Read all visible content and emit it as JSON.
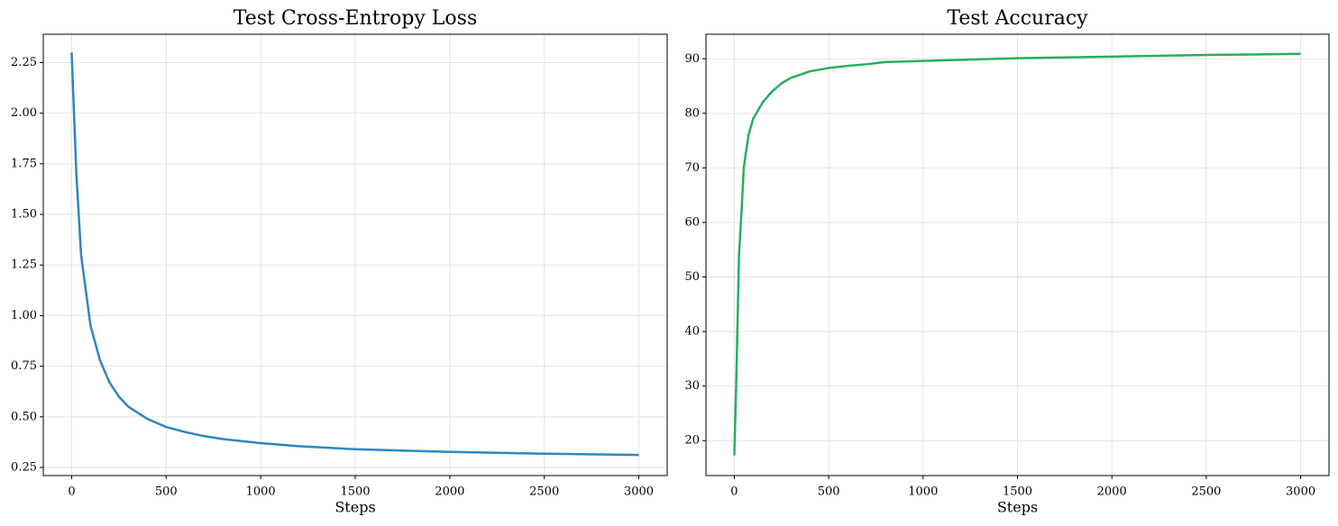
{
  "chart_data": [
    {
      "type": "line",
      "title": "Test Cross-Entropy Loss",
      "x_label": "Steps",
      "x": [
        0,
        25,
        50,
        100,
        150,
        200,
        250,
        300,
        400,
        500,
        600,
        700,
        800,
        1000,
        1200,
        1500,
        2000,
        2500,
        3000
      ],
      "values": [
        2.3,
        1.7,
        1.3,
        0.95,
        0.78,
        0.67,
        0.6,
        0.55,
        0.49,
        0.45,
        0.425,
        0.405,
        0.39,
        0.37,
        0.355,
        0.34,
        0.327,
        0.318,
        0.312
      ],
      "color": "#2e86c1",
      "xlim": [
        -150,
        3150
      ],
      "xticks": [
        0,
        500,
        1000,
        1500,
        2000,
        2500,
        3000
      ],
      "ylim": [
        0.21,
        2.39
      ],
      "yticks": [
        0.25,
        {
          "value": 0.5,
          "label": "0.50"
        },
        0.75,
        {
          "value": 1,
          "label": "1.00"
        },
        1.25,
        {
          "value": 1.5,
          "label": "1.50"
        },
        1.75,
        {
          "value": 2,
          "label": "2.00"
        },
        2.25
      ],
      "grid": true
    },
    {
      "type": "line",
      "title": "Test Accuracy",
      "x_label": "Steps",
      "x": [
        0,
        10,
        25,
        40,
        50,
        75,
        100,
        150,
        200,
        250,
        300,
        400,
        500,
        600,
        700,
        800,
        1000,
        1500,
        2000,
        2500,
        3000
      ],
      "values": [
        17.3,
        30,
        54,
        63,
        70,
        76,
        79,
        82,
        84,
        85.5,
        86.5,
        87.7,
        88.3,
        88.7,
        89.0,
        89.4,
        89.6,
        90.1,
        90.4,
        90.7,
        90.9
      ],
      "color": "#27ae60",
      "xlim": [
        -150,
        3150
      ],
      "xticks": [
        0,
        500,
        1000,
        1500,
        2000,
        2500,
        3000
      ],
      "ylim": [
        13.6,
        94.5
      ],
      "yticks": [
        20,
        30,
        40,
        50,
        60,
        70,
        80,
        90
      ],
      "grid": true
    }
  ]
}
